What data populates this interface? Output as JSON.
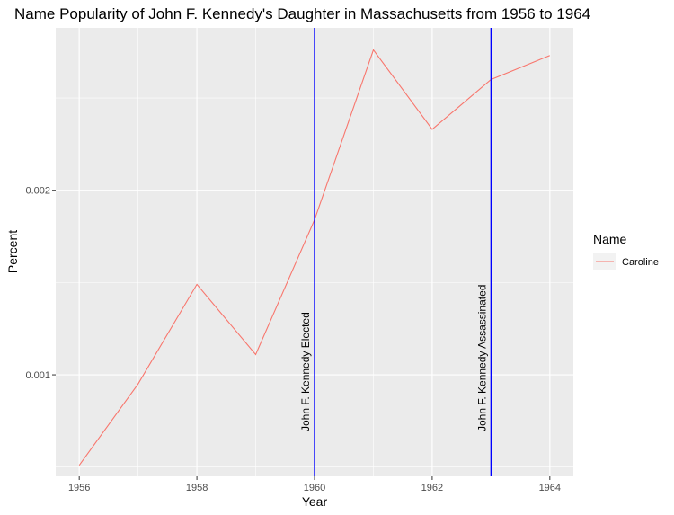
{
  "chart_data": {
    "type": "line",
    "title": "Name Popularity of John F. Kennedy's Daughter in Massachusetts from 1956 to 1964",
    "xlabel": "Year",
    "ylabel": "Percent",
    "xlim": [
      1955.6,
      1964.4
    ],
    "ylim": [
      0.00045,
      0.00288
    ],
    "x_ticks": [
      1956,
      1958,
      1960,
      1962,
      1964
    ],
    "x_tick_labels": [
      "1956",
      "1958",
      "1960",
      "1962",
      "1964"
    ],
    "y_ticks": [
      0.001,
      0.002
    ],
    "y_tick_labels": [
      "0.001",
      "0.002"
    ],
    "grid": true,
    "legend": {
      "title": "Name",
      "position": "right"
    },
    "series": [
      {
        "name": "Caroline",
        "color": "#F8766D",
        "x": [
          1956,
          1957,
          1958,
          1959,
          1960,
          1961,
          1962,
          1963,
          1964
        ],
        "y": [
          0.00051,
          0.00095,
          0.00149,
          0.00111,
          0.00184,
          0.00276,
          0.00233,
          0.0026,
          0.00273
        ]
      }
    ],
    "vlines": [
      {
        "x": 1960,
        "label": "John F. Kennedy Elected",
        "color": "#0000FF"
      },
      {
        "x": 1963,
        "label": "John F. Kennedy Assassinated",
        "color": "#0000FF"
      }
    ]
  },
  "colors": {
    "panel_background": "#EBEBEB",
    "grid_major": "#FFFFFF",
    "tick_text": "#4D4D4D"
  }
}
